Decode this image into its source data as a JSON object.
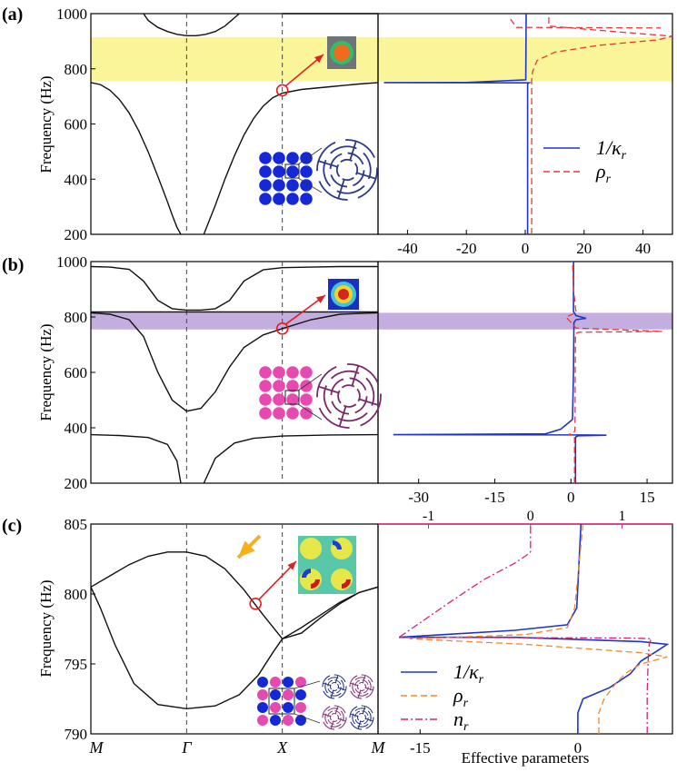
{
  "panel_labels": [
    "(a)",
    "(b)",
    "(c)"
  ],
  "colors": {
    "yellow_band": "#fbf59a",
    "purple_band": "#c4aee0",
    "kappa": "#1f35c8",
    "rho_a": "#e53a3a",
    "rho_c": "#ef8a2e",
    "n": "#d4237a",
    "dot_blue": "#1428d8",
    "dot_pink": "#e64ab0",
    "arrow_red": "#e02020",
    "arrow_orange": "#f4b11c"
  },
  "chart_data": [
    {
      "id": "a_band",
      "type": "line",
      "ylabel": "Frequency (Hz)",
      "ylim": [
        200,
        1000
      ],
      "yticks": [
        200,
        400,
        600,
        800,
        1000
      ],
      "xlim": [
        0,
        3
      ],
      "band_gap": [
        755,
        915
      ],
      "series": [
        {
          "x": [
            0.55,
            0.6,
            0.7,
            0.8,
            0.9,
            1.0,
            1.1,
            1.2,
            1.3,
            1.4,
            1.5,
            1.55
          ],
          "y": [
            1000,
            975,
            950,
            935,
            925,
            920,
            920,
            925,
            935,
            955,
            985,
            1000
          ]
        },
        {
          "x": [
            0,
            0.1,
            0.2,
            0.3,
            0.4,
            0.5,
            0.6,
            0.7,
            0.8,
            0.85,
            0.9,
            0.94
          ],
          "y": [
            750,
            743,
            722,
            688,
            640,
            575,
            498,
            410,
            318,
            270,
            225,
            200
          ]
        },
        {
          "x": [
            1.18,
            1.3,
            1.4,
            1.5,
            1.6,
            1.7,
            1.8,
            1.9,
            2.0,
            2.2,
            2.5,
            2.8,
            3.0
          ],
          "y": [
            200,
            305,
            400,
            485,
            560,
            620,
            665,
            695,
            712,
            725,
            735,
            745,
            750
          ]
        },
        {
          "x": [
            2.0,
            2.5,
            3.0
          ],
          "y": [
            1000,
            1000,
            1000
          ]
        }
      ],
      "marker": {
        "x": 2.0,
        "y": 722
      }
    },
    {
      "id": "a_eff",
      "type": "line",
      "xlim": [
        -50,
        50
      ],
      "xticks": [
        -40,
        -20,
        0,
        20,
        40
      ],
      "ylim": [
        200,
        1000
      ],
      "series": [
        {
          "name": "1/κ_r",
          "style": "solid",
          "x": [
            0.8,
            0.8,
            0.8,
            1.0,
            1.3,
            -20,
            -48,
            -20,
            0.2,
            0.3
          ],
          "y": [
            200,
            700,
            745,
            747,
            749,
            749.5,
            750,
            750.5,
            760,
            1000
          ]
        },
        {
          "name": "ρ_r",
          "style": "dashed",
          "x": [
            2.2,
            2.2,
            2.2,
            2.5,
            4,
            10,
            25,
            45,
            50,
            30,
            8,
            8
          ],
          "y": [
            200,
            745,
            760,
            790,
            830,
            860,
            885,
            905,
            918,
            935,
            955,
            1000
          ]
        }
      ],
      "extra_series": [
        {
          "style": "dashed",
          "x": [
            -5,
            -3,
            46
          ],
          "y": [
            980,
            950,
            948
          ]
        }
      ]
    },
    {
      "id": "b_band",
      "type": "line",
      "ylabel": "Frequency (Hz)",
      "ylim": [
        200,
        1000
      ],
      "yticks": [
        200,
        400,
        600,
        800,
        1000
      ],
      "xlim": [
        0,
        3
      ],
      "band_gap": [
        755,
        815
      ],
      "series": [
        {
          "x": [
            0,
            0.2,
            0.4,
            0.55,
            0.7,
            0.85,
            1.0,
            1.15,
            1.3,
            1.45,
            1.6,
            1.8,
            2.0,
            2.3,
            2.6,
            3.0
          ],
          "y": [
            982,
            980,
            972,
            930,
            860,
            830,
            825,
            825,
            830,
            860,
            930,
            970,
            978,
            980,
            982,
            982
          ]
        },
        {
          "x": [
            0,
            0.2,
            0.4,
            0.55,
            0.7,
            0.85,
            1.0,
            1.15,
            1.3,
            1.45,
            1.6,
            1.8,
            2.0,
            2.3,
            2.6,
            3.0
          ],
          "y": [
            815,
            810,
            790,
            730,
            600,
            500,
            460,
            470,
            530,
            620,
            690,
            735,
            758,
            790,
            810,
            815
          ]
        },
        {
          "x": [
            0,
            0.5,
            1.0,
            1.5,
            2.0,
            2.5,
            3.0
          ],
          "y": [
            818,
            818,
            818,
            818,
            818,
            818,
            818
          ]
        },
        {
          "x": [
            0,
            0.3,
            0.6,
            0.8,
            0.9,
            0.94
          ],
          "y": [
            375,
            372,
            365,
            340,
            280,
            200
          ]
        },
        {
          "x": [
            1.18,
            1.3,
            1.5,
            1.7,
            2.0,
            2.5,
            3.0
          ],
          "y": [
            200,
            290,
            345,
            362,
            370,
            374,
            375
          ]
        }
      ],
      "marker": {
        "x": 2.0,
        "y": 758
      }
    },
    {
      "id": "b_eff",
      "type": "line",
      "xlim": [
        -38,
        20
      ],
      "xticks": [
        -30,
        -15,
        0,
        15
      ],
      "ylim": [
        200,
        1000
      ],
      "series": [
        {
          "name": "1/κ_r",
          "style": "solid",
          "x": [
            0.9,
            0.9,
            1.0,
            1.5,
            7,
            3,
            -35,
            -5,
            -2,
            0.3,
            0.5,
            0.6,
            1,
            3,
            1,
            0.5,
            0.5
          ],
          "y": [
            200,
            360,
            368,
            371,
            373,
            374,
            375,
            378,
            395,
            430,
            600,
            780,
            790,
            795,
            805,
            820,
            1000
          ]
        },
        {
          "name": "ρ_r",
          "style": "dashed",
          "x": [
            0.7,
            0.7,
            0.5,
            -0.5,
            0.5,
            0.8,
            0.9,
            1.5,
            18,
            1,
            -1,
            1,
            0.5,
            0.3
          ],
          "y": [
            200,
            370,
            375,
            376,
            380,
            390,
            740,
            745,
            748,
            760,
            800,
            815,
            900,
            1000
          ]
        }
      ]
    },
    {
      "id": "c_band",
      "type": "line",
      "ylabel": "Frequency (Hz)",
      "ylim": [
        790,
        805
      ],
      "yticks": [
        790,
        795,
        800,
        805
      ],
      "xlim": [
        0,
        3
      ],
      "xtick_labels": [
        "M",
        "Γ",
        "X",
        "M"
      ],
      "series": [
        {
          "x": [
            0,
            0.2,
            0.4,
            0.6,
            0.8,
            1.0,
            1.2,
            1.4,
            1.6,
            1.8,
            2.0
          ],
          "y": [
            800.5,
            801.3,
            802.1,
            802.7,
            803.0,
            803.0,
            802.7,
            801.8,
            800.3,
            798.5,
            796.8
          ]
        },
        {
          "x": [
            0,
            0.1,
            0.25,
            0.45,
            0.7,
            1.0,
            1.3,
            1.55,
            1.75,
            1.9,
            2.0
          ],
          "y": [
            800.5,
            799.0,
            796.4,
            793.6,
            792.1,
            791.8,
            792.0,
            792.8,
            794.2,
            795.8,
            796.8
          ]
        },
        {
          "x": [
            2.0,
            2.2,
            2.4,
            2.6,
            2.8,
            3.0
          ],
          "y": [
            796.8,
            797.6,
            798.5,
            799.4,
            800.1,
            800.5
          ]
        },
        {
          "x": [
            2.0,
            2.2,
            2.4,
            2.6,
            2.8,
            3.0
          ],
          "y": [
            796.8,
            797.2,
            798.3,
            799.3,
            800.1,
            800.5
          ]
        }
      ],
      "marker": {
        "x": 1.72,
        "y": 799.3
      }
    },
    {
      "id": "c_eff",
      "type": "line",
      "xlabel": "Effective parameters",
      "xlim": [
        -19,
        9
      ],
      "xticks": [
        -15,
        0
      ],
      "top_axis_ticks": [
        {
          "value": -1,
          "pos": -14.2
        },
        {
          "value": 0,
          "pos": -4.5
        },
        {
          "value": 1,
          "pos": 4.2
        }
      ],
      "ylim": [
        790,
        805
      ],
      "series": [
        {
          "name": "1/κ_r",
          "style": "solid",
          "x": [
            0,
            0,
            0.5,
            3,
            5,
            6,
            7.5,
            8.5,
            6,
            -6,
            -17,
            -6,
            -1,
            -0.1,
            0.1,
            0.3
          ],
          "y": [
            790,
            791.5,
            792.5,
            793.3,
            794.3,
            795.2,
            795.9,
            796.4,
            796.6,
            796.9,
            796.9,
            797.4,
            797.8,
            799.0,
            802.0,
            805.0
          ]
        },
        {
          "name": "ρ_r",
          "style": "dashed",
          "x": [
            2,
            2,
            2.5,
            3.5,
            4.5,
            6,
            8.5,
            6,
            -5,
            -16,
            -5,
            -1,
            -0.3,
            0.5
          ],
          "y": [
            790,
            791.5,
            792.5,
            793.5,
            794.3,
            795.0,
            795.5,
            795.8,
            796.4,
            796.8,
            797.1,
            797.6,
            799.0,
            805.0
          ]
        },
        {
          "name": "n_r",
          "style": "dashdot",
          "x": [
            6.6,
            6.6,
            6.7,
            6.8,
            7.0,
            5,
            -17,
            -12,
            -9,
            -6,
            -5,
            -4.5,
            -4.5
          ],
          "y": [
            790,
            793,
            795.5,
            796.5,
            796.8,
            796.85,
            796.9,
            799.5,
            801.0,
            802.2,
            802.7,
            803.0,
            805.0
          ]
        }
      ]
    }
  ],
  "legend_a": [
    {
      "label": "1/κ",
      "sub": "r",
      "style": "solid"
    },
    {
      "label": "ρ",
      "sub": "r",
      "style": "dashed"
    }
  ],
  "legend_c": [
    {
      "label": "1/κ",
      "sub": "r",
      "style": "solid"
    },
    {
      "label": "ρ",
      "sub": "r",
      "style": "dashed"
    },
    {
      "label": "n",
      "sub": "r",
      "style": "dashdot"
    }
  ]
}
